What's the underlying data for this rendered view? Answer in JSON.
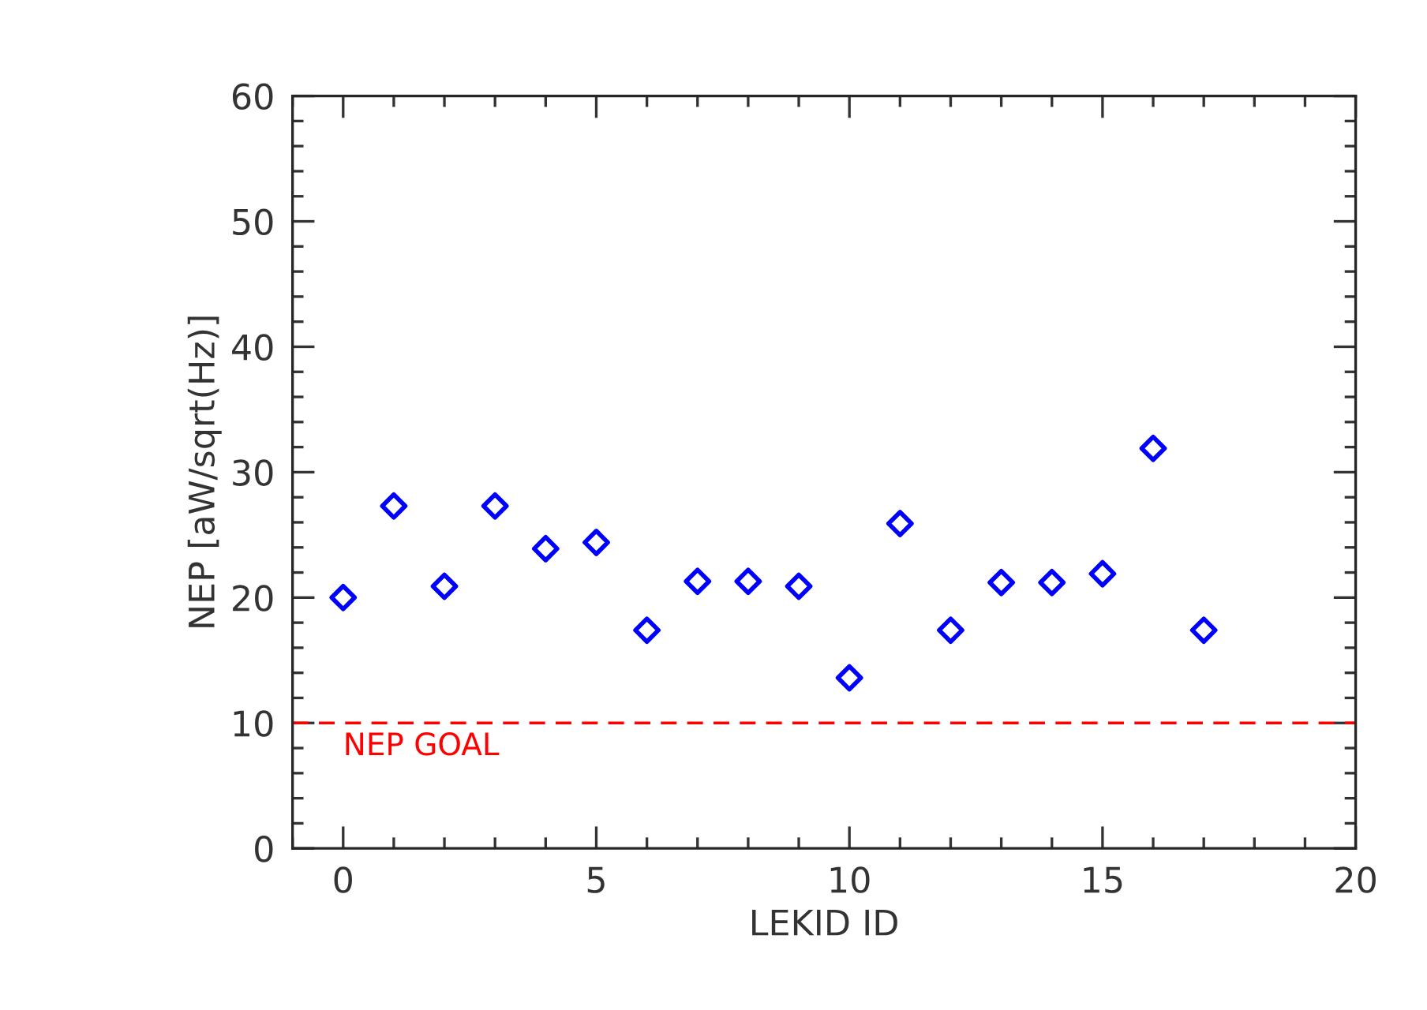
{
  "chart_data": {
    "type": "scatter",
    "xlabel": "LEKID ID",
    "ylabel": "NEP [aW/sqrt(Hz)]",
    "x": [
      0,
      1,
      2,
      3,
      4,
      5,
      6,
      7,
      8,
      9,
      10,
      11,
      12,
      13,
      14,
      15,
      16,
      17
    ],
    "series": [
      {
        "color": "#0000ff",
        "values": [
          20.0,
          27.3,
          20.9,
          27.3,
          23.9,
          24.4,
          17.4,
          21.3,
          21.3,
          20.9,
          13.6,
          25.9,
          17.4,
          21.2,
          21.2,
          21.9,
          31.9,
          17.4
        ]
      }
    ],
    "marker": "diamond",
    "xlim": [
      -1,
      20
    ],
    "xticks": [
      0,
      5,
      10,
      15,
      20
    ],
    "ylim": [
      0,
      60
    ],
    "yticks": [
      0,
      10,
      20,
      30,
      40,
      50,
      60
    ],
    "ref_lines": [
      {
        "axis": "y",
        "value": 10,
        "label": "NEP GOAL",
        "color": "#ff0000",
        "line_style": "dashed"
      }
    ],
    "grid": false,
    "legend": false
  }
}
